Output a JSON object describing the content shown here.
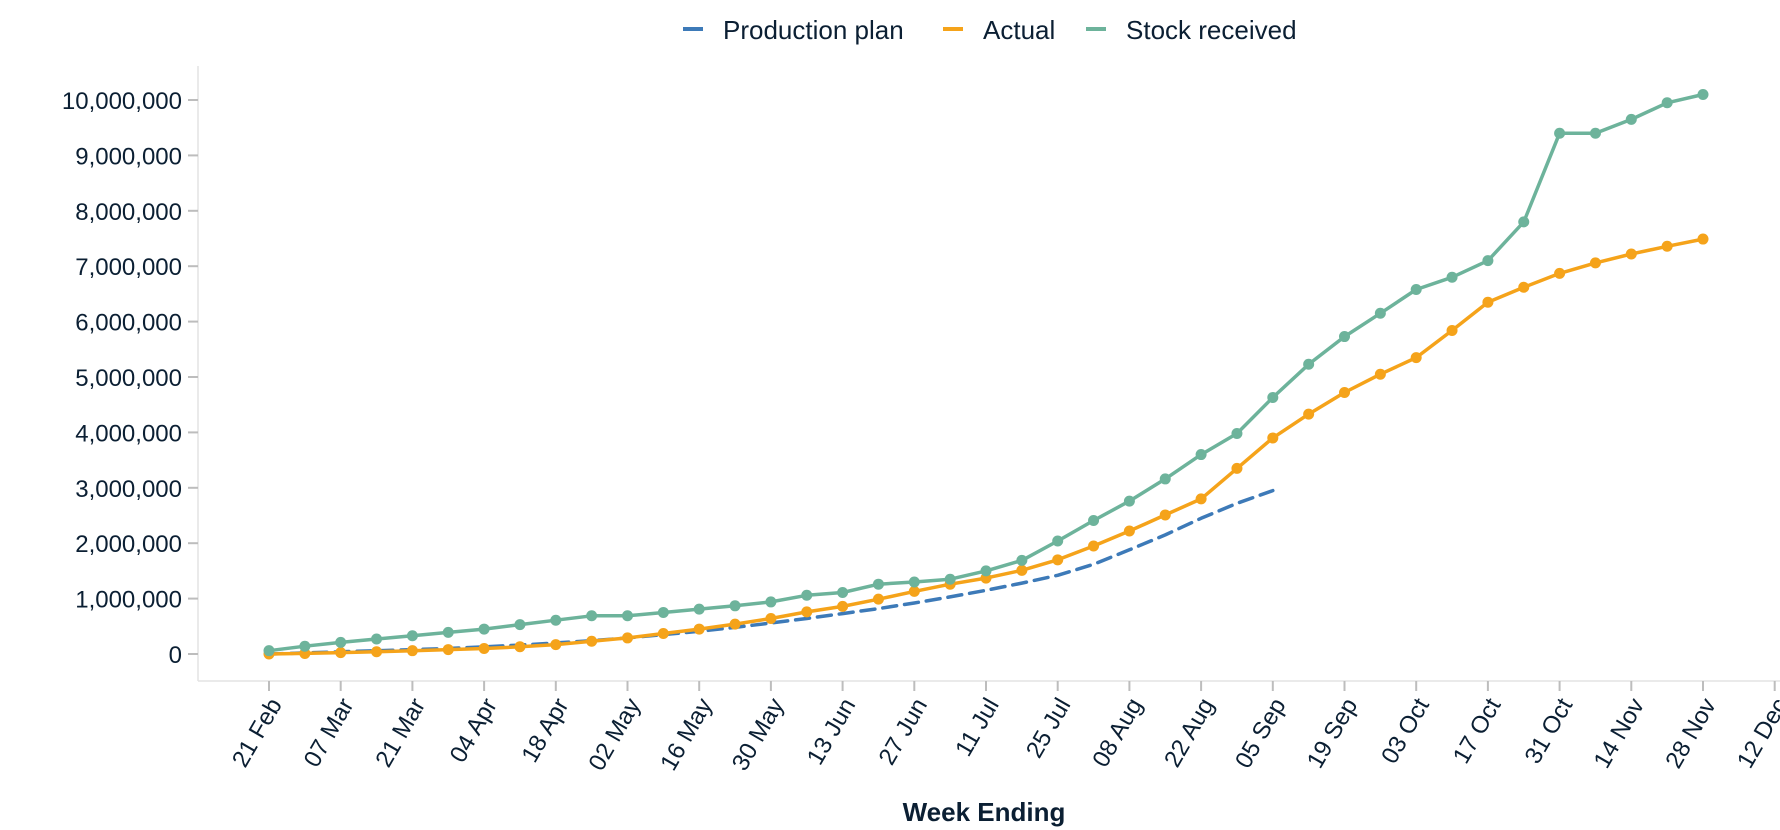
{
  "chart_data": {
    "type": "line",
    "xlabel": "Week Ending",
    "ylabel": "",
    "legend_position": "top-center",
    "grid": false,
    "x_date_year": 2021,
    "x": [
      "2021-02-21",
      "2021-02-28",
      "2021-03-07",
      "2021-03-14",
      "2021-03-21",
      "2021-03-28",
      "2021-04-04",
      "2021-04-11",
      "2021-04-18",
      "2021-04-25",
      "2021-05-02",
      "2021-05-09",
      "2021-05-16",
      "2021-05-23",
      "2021-05-30",
      "2021-06-06",
      "2021-06-13",
      "2021-06-20",
      "2021-06-27",
      "2021-07-04",
      "2021-07-11",
      "2021-07-18",
      "2021-07-25",
      "2021-08-01",
      "2021-08-08",
      "2021-08-15",
      "2021-08-22",
      "2021-08-29",
      "2021-09-05",
      "2021-09-12",
      "2021-09-19",
      "2021-09-26",
      "2021-10-03",
      "2021-10-10",
      "2021-10-17",
      "2021-10-24",
      "2021-10-31",
      "2021-11-07",
      "2021-11-14",
      "2021-11-21",
      "2021-11-28"
    ],
    "x_ticks": [
      "21 Feb",
      "07 Mar",
      "21 Mar",
      "04 Apr",
      "18 Apr",
      "02 May",
      "16 May",
      "30 May",
      "13 Jun",
      "27 Jun",
      "11 Jul",
      "25 Jul",
      "08 Aug",
      "22 Aug",
      "05 Sep",
      "19 Sep",
      "03 Oct",
      "17 Oct",
      "31 Oct",
      "14 Nov",
      "28 Nov",
      "12 Dec"
    ],
    "y_ticks": [
      "0",
      "1,000,000",
      "2,000,000",
      "3,000,000",
      "4,000,000",
      "5,000,000",
      "6,000,000",
      "7,000,000",
      "8,000,000",
      "9,000,000",
      "10,000,000"
    ],
    "ylim": [
      0,
      10000000
    ],
    "series": [
      {
        "name": "Production plan",
        "color": "#3d7ab8",
        "style": "dashed",
        "markers": false,
        "values": [
          0,
          20000,
          40000,
          60000,
          80000,
          100000,
          130000,
          160000,
          200000,
          240000,
          290000,
          350000,
          410000,
          480000,
          560000,
          640000,
          730000,
          820000,
          920000,
          1030000,
          1150000,
          1280000,
          1420000,
          1620000,
          1880000,
          2150000,
          2450000,
          2720000,
          2950000,
          null,
          null,
          null,
          null,
          null,
          null,
          null,
          null,
          null,
          null,
          null,
          null
        ]
      },
      {
        "name": "Actual",
        "color": "#f5a31a",
        "style": "solid",
        "markers": true,
        "values": [
          0,
          10000,
          25000,
          40000,
          60000,
          80000,
          100000,
          130000,
          170000,
          230000,
          290000,
          370000,
          450000,
          540000,
          640000,
          760000,
          860000,
          990000,
          1130000,
          1260000,
          1370000,
          1510000,
          1700000,
          1950000,
          2220000,
          2510000,
          2800000,
          3350000,
          3900000,
          4330000,
          4720000,
          5050000,
          5350000,
          5840000,
          6350000,
          6620000,
          6870000,
          7060000,
          7220000,
          7360000,
          7490000
        ]
      },
      {
        "name": "Stock received",
        "color": "#6db39b",
        "style": "solid",
        "markers": true,
        "values": [
          60000,
          140000,
          210000,
          270000,
          330000,
          390000,
          450000,
          530000,
          610000,
          690000,
          690000,
          750000,
          810000,
          870000,
          940000,
          1060000,
          1110000,
          1260000,
          1300000,
          1350000,
          1500000,
          1690000,
          2040000,
          2410000,
          2760000,
          3160000,
          3600000,
          3980000,
          4630000,
          5230000,
          5730000,
          6150000,
          6580000,
          6800000,
          7100000,
          7800000,
          9400000,
          9400000,
          9650000,
          9950000,
          10100000
        ]
      }
    ]
  }
}
